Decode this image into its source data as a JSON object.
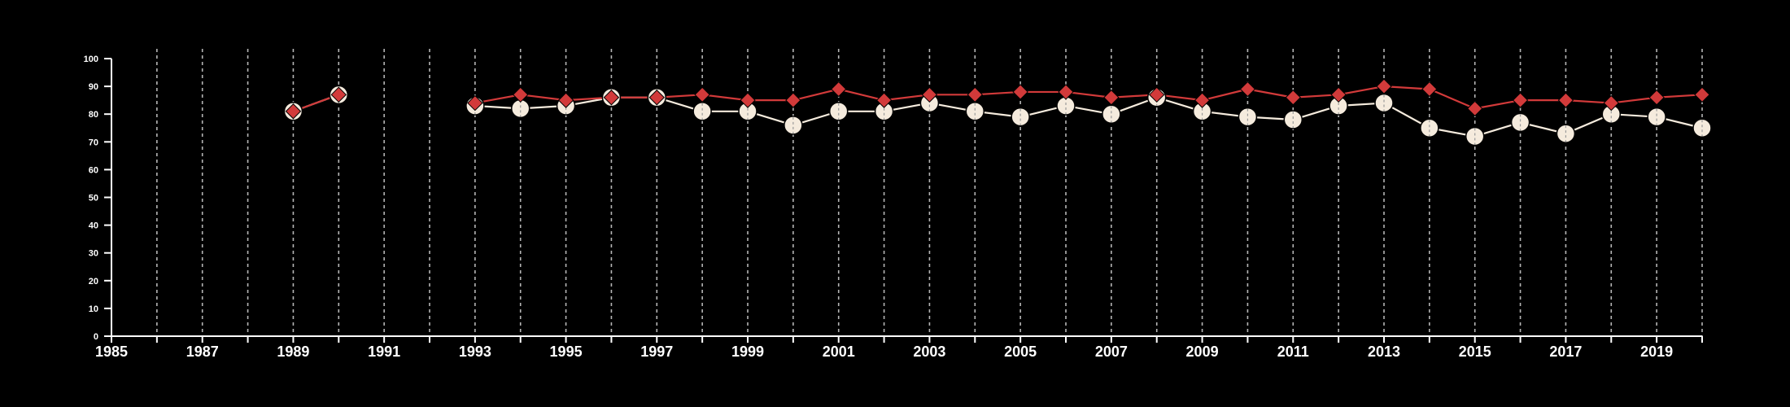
{
  "chart_data": {
    "type": "line",
    "title": "",
    "xlabel": "",
    "ylabel": "",
    "xlim": [
      1985,
      2020
    ],
    "ylim": [
      0,
      100
    ],
    "x_ticks_labeled": [
      1985,
      1987,
      1989,
      1991,
      1993,
      1995,
      1997,
      1999,
      2001,
      2003,
      2005,
      2007,
      2009,
      2011,
      2013,
      2015,
      2017,
      2019
    ],
    "y_ticks": [
      0,
      10,
      20,
      30,
      40,
      50,
      60,
      70,
      80,
      90,
      100
    ],
    "vertical_gridlines": "dashed, at every year",
    "horizontal_gridlines": false,
    "legend": "none",
    "background": "#000000",
    "axis_color": "#ffffff",
    "series": [
      {
        "marker": "diamond",
        "color": "#d23a3a",
        "points": [
          [
            1989,
            81
          ],
          [
            1990,
            87
          ],
          [
            1993,
            84
          ],
          [
            1994,
            87
          ],
          [
            1995,
            85
          ],
          [
            1996,
            86
          ],
          [
            1997,
            86
          ],
          [
            1998,
            87
          ],
          [
            1999,
            85
          ],
          [
            2000,
            85
          ],
          [
            2001,
            89
          ],
          [
            2002,
            85
          ],
          [
            2003,
            87
          ],
          [
            2004,
            87
          ],
          [
            2005,
            88
          ],
          [
            2006,
            88
          ],
          [
            2007,
            86
          ],
          [
            2008,
            87
          ],
          [
            2009,
            85
          ],
          [
            2010,
            89
          ],
          [
            2011,
            86
          ],
          [
            2012,
            87
          ],
          [
            2013,
            90
          ],
          [
            2014,
            89
          ],
          [
            2015,
            82
          ],
          [
            2016,
            85
          ],
          [
            2017,
            85
          ],
          [
            2018,
            84
          ],
          [
            2019,
            86
          ],
          [
            2020,
            87
          ]
        ]
      },
      {
        "marker": "circle",
        "color": "#f5ebdd",
        "points": [
          [
            1989,
            81
          ],
          [
            1990,
            87
          ],
          [
            1993,
            83
          ],
          [
            1994,
            82
          ],
          [
            1995,
            83
          ],
          [
            1996,
            86
          ],
          [
            1997,
            86
          ],
          [
            1998,
            81
          ],
          [
            1999,
            81
          ],
          [
            2000,
            76
          ],
          [
            2001,
            81
          ],
          [
            2002,
            81
          ],
          [
            2003,
            84
          ],
          [
            2004,
            81
          ],
          [
            2005,
            79
          ],
          [
            2006,
            83
          ],
          [
            2007,
            80
          ],
          [
            2008,
            86
          ],
          [
            2009,
            81
          ],
          [
            2010,
            79
          ],
          [
            2011,
            78
          ],
          [
            2012,
            83
          ],
          [
            2013,
            84
          ],
          [
            2014,
            75
          ],
          [
            2015,
            72
          ],
          [
            2016,
            77
          ],
          [
            2017,
            73
          ],
          [
            2018,
            80
          ],
          [
            2019,
            79
          ],
          [
            2020,
            75
          ]
        ]
      }
    ]
  }
}
